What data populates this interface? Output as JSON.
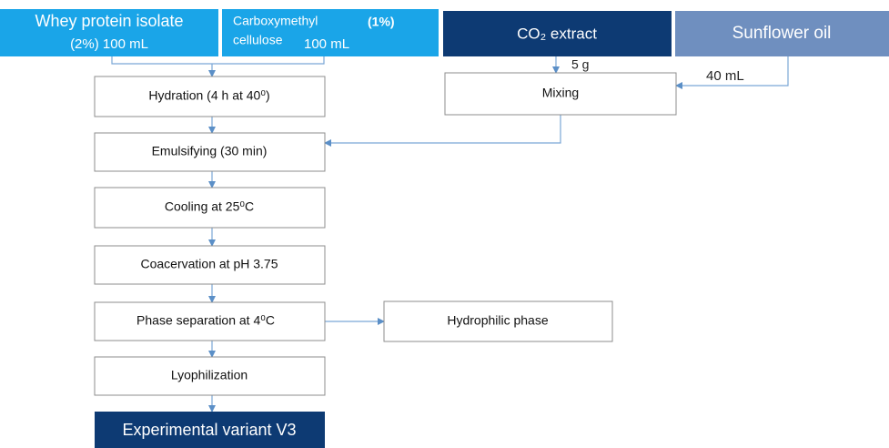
{
  "inputs": {
    "whey": {
      "line1": "Whey protein isolate",
      "line2": "(2%) 100 mL"
    },
    "cmc": {
      "line1": "Carboxymethyl",
      "percent": "(1%)",
      "line2": "cellulose",
      "amount": "100 mL"
    },
    "co2": {
      "label": "CO₂ extract",
      "amount": "5 g"
    },
    "oil": {
      "label": "Sunflower oil",
      "amount": "40 mL"
    }
  },
  "steps": [
    "Hydration (4 h  at  40⁰)",
    "Emulsifying (30 min)",
    "Cooling at 25⁰C",
    "Coacervation at pH 3.75",
    "Phase separation at 4⁰C",
    "Lyophilization"
  ],
  "mixing": "Mixing",
  "side_output": "Hydrophilic phase",
  "result": "Experimental variant V3"
}
